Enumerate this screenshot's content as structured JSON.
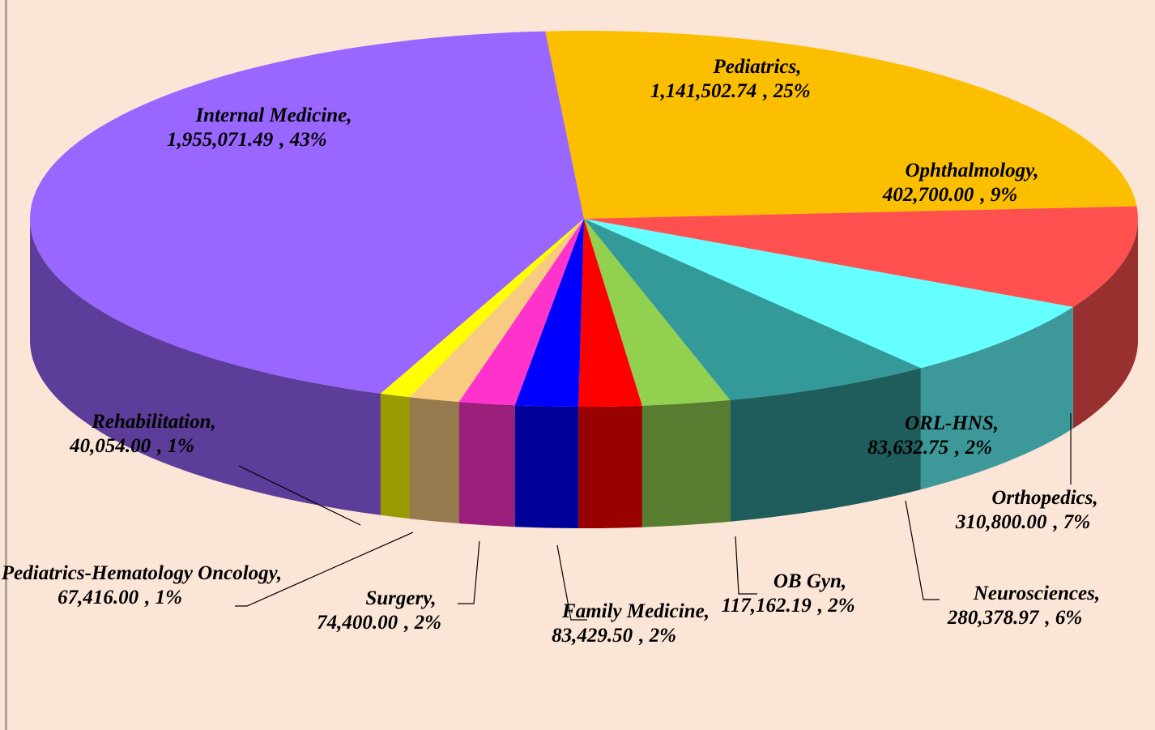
{
  "chart_data": {
    "type": "pie3d",
    "categories": [
      "Internal Medicine,",
      "Pediatrics,",
      "Ophthalmology,",
      "Orthopedics,",
      "Neurosciences,",
      "OB Gyn,",
      "ORL-HNS,",
      "Family Medicine,",
      "Surgery,",
      "Pediatrics-Hematology Oncology,",
      "Rehabilitation,"
    ],
    "values": [
      1955071.49,
      1141502.74,
      402700,
      310800,
      280378.97,
      117162.19,
      83632.75,
      83429.5,
      74400,
      67416,
      40054
    ],
    "value_labels": [
      "1,955,071.49",
      "1,141,502.74",
      "402,700.00",
      "310,800.00",
      "280,378.97",
      "117,162.19",
      "83,632.75",
      "83,429.50",
      "74,400.00",
      "67,416.00",
      "40,054.00"
    ],
    "percent_labels": [
      ", 43%",
      ", 25%",
      ", 9%",
      ", 7%",
      ", 6%",
      ", 2%",
      ", 2%",
      ", 2%",
      ", 2%",
      ", 1%",
      ", 1%"
    ],
    "colors": [
      "#9966ff",
      "#fbbf00",
      "#ff5050",
      "#66ffff",
      "#339999",
      "#92d050",
      "#ff0000",
      "#0000ff",
      "#ff33cc",
      "#f9cb80",
      "#ffff00"
    ]
  }
}
